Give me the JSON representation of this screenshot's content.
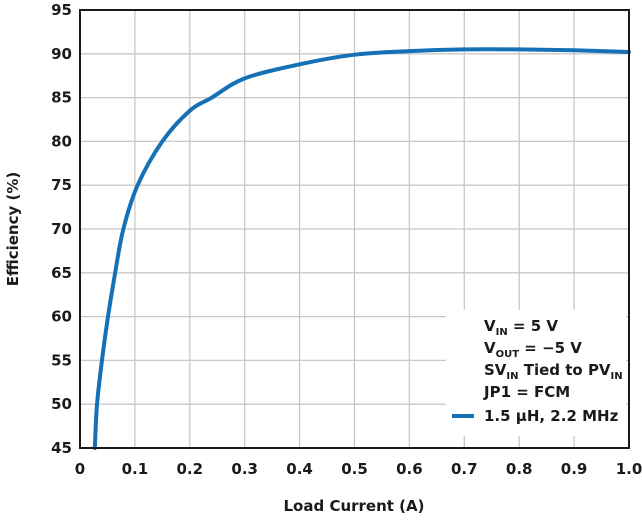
{
  "chart_data": {
    "type": "line",
    "title": "",
    "xlabel": "Load Current (A)",
    "ylabel": "Efficiency (%)",
    "xlim": [
      0,
      1.0
    ],
    "ylim": [
      45,
      95
    ],
    "xticks": [
      "0",
      "0.1",
      "0.2",
      "0.3",
      "0.4",
      "0.5",
      "0.6",
      "0.7",
      "0.8",
      "0.9",
      "1.0"
    ],
    "yticks": [
      "45",
      "50",
      "55",
      "60",
      "65",
      "70",
      "75",
      "80",
      "85",
      "90",
      "95"
    ],
    "grid": true,
    "legend_placement": "bottom-right",
    "legend_conditions": [
      {
        "main": "V",
        "sub": "IN",
        "rest": " = 5 V"
      },
      {
        "main": "V",
        "sub": "OUT",
        "rest": " = −5 V"
      },
      {
        "main": "SV",
        "sub": "IN",
        "rest": " Tied to PV",
        "sub2": "IN"
      },
      {
        "main": "JP1 = FCM"
      }
    ],
    "series": [
      {
        "name": "1.5 µH, 2.2 MHz",
        "color": "#1570b5",
        "x": [
          0.027,
          0.031,
          0.04,
          0.051,
          0.064,
          0.079,
          0.105,
          0.15,
          0.2,
          0.24,
          0.3,
          0.4,
          0.5,
          0.6,
          0.7,
          0.8,
          0.9,
          1.0
        ],
        "y": [
          45,
          50,
          55,
          60,
          65,
          70,
          75,
          80,
          83.5,
          85,
          87.2,
          88.8,
          89.9,
          90.3,
          90.5,
          90.5,
          90.4,
          90.2
        ]
      }
    ]
  }
}
